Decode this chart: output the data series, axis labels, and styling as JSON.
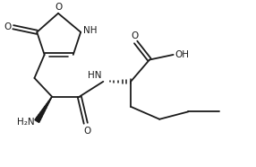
{
  "bg_color": "#ffffff",
  "line_color": "#1a1a1a",
  "line_width": 1.3,
  "font_size": 7.5,
  "fig_width": 2.86,
  "fig_height": 1.86,
  "dpi": 100,
  "xlim": [
    0,
    10
  ],
  "ylim": [
    0,
    6.5
  ]
}
